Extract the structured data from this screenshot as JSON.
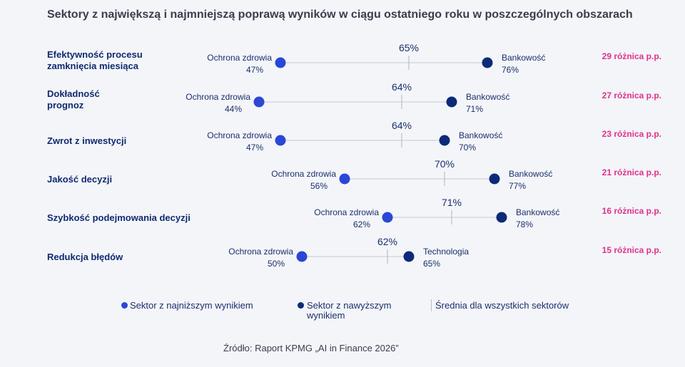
{
  "title": "Sektory z największą i najmniejszą poprawą wyników w ciągu ostatniego roku w poszczególnych obszarach",
  "source": "Źródło: Raport KPMG „AI in Finance 2026”",
  "colors": {
    "low": "#2a47d6",
    "high": "#0c2a78",
    "mean_line": "#b9bfca",
    "track": "#d4d8e0",
    "category": "#102a6e",
    "diff": "#e0318a",
    "label": "#1c2f6b"
  },
  "legend": {
    "low_label": "Sektor z najniższym wynikiem",
    "high_label_line1": "Sektor z nawyższym",
    "high_label_line2": "wynikiem",
    "mean_label": "Średnia dla wszystkich sektorów"
  },
  "chart_data": {
    "type": "dumbbell",
    "unit": "%",
    "rows": [
      {
        "category": [
          "Efektywność procesu",
          "zamknięcia miesiąca"
        ],
        "low": {
          "sector": "Ochrona zdrowia",
          "value": 47,
          "label": "47%"
        },
        "high": {
          "sector": "Bankowość",
          "value": 76,
          "label": "76%"
        },
        "mean": {
          "value": 65,
          "label": "65%"
        },
        "difference": "29 różnica p.p."
      },
      {
        "category": [
          "Dokładność",
          "prognoz"
        ],
        "low": {
          "sector": "Ochrona zdrowia",
          "value": 44,
          "label": "44%"
        },
        "high": {
          "sector": "Bankowość",
          "value": 71,
          "label": "71%"
        },
        "mean": {
          "value": 64,
          "label": "64%"
        },
        "difference": "27 różnica p.p."
      },
      {
        "category": [
          "Zwrot z inwestycji"
        ],
        "low": {
          "sector": "Ochrona zdrowia",
          "value": 47,
          "label": "47%"
        },
        "high": {
          "sector": "Bankowość",
          "value": 70,
          "label": "70%"
        },
        "mean": {
          "value": 64,
          "label": "64%"
        },
        "difference": "23 różnica p.p."
      },
      {
        "category": [
          "Jakość decyzji"
        ],
        "low": {
          "sector": "Ochrona zdrowia",
          "value": 56,
          "label": "56%"
        },
        "high": {
          "sector": "Bankowość",
          "value": 77,
          "label": "77%"
        },
        "mean": {
          "value": 70,
          "label": "70%"
        },
        "difference": "21 różnica p.p."
      },
      {
        "category": [
          "Szybkość podejmowania decyzji"
        ],
        "low": {
          "sector": "Ochrona zdrowia",
          "value": 62,
          "label": "62%"
        },
        "high": {
          "sector": "Bankowość",
          "value": 78,
          "label": "78%"
        },
        "mean": {
          "value": 71,
          "label": "71%"
        },
        "difference": "16 różnica p.p."
      },
      {
        "category": [
          "Redukcja błędów"
        ],
        "low": {
          "sector": "Ochrona zdrowia",
          "value": 50,
          "label": "50%"
        },
        "high": {
          "sector": "Technologia",
          "value": 65,
          "label": "65%"
        },
        "mean": {
          "value": 62,
          "label": "62%"
        },
        "difference": "15 różnica p.p."
      }
    ]
  }
}
